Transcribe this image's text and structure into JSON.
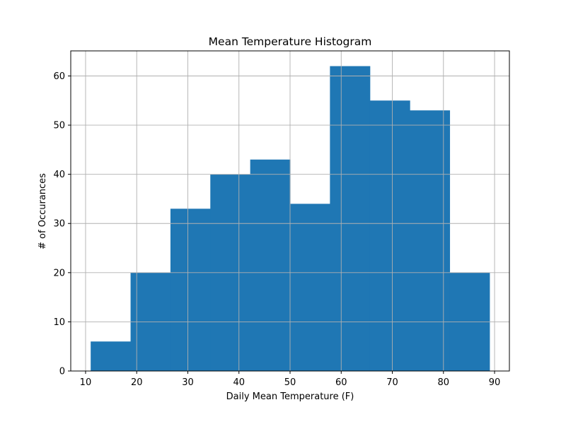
{
  "chart_data": {
    "type": "bar",
    "title": "Mean Temperature Histogram",
    "xlabel": "Daily Mean Temperature (F)",
    "ylabel": "# of Occurances",
    "bins": [
      {
        "start": 11.0,
        "end": 18.8,
        "count": 6
      },
      {
        "start": 18.8,
        "end": 26.6,
        "count": 20
      },
      {
        "start": 26.6,
        "end": 34.4,
        "count": 33
      },
      {
        "start": 34.4,
        "end": 42.2,
        "count": 40
      },
      {
        "start": 42.2,
        "end": 50.0,
        "count": 43
      },
      {
        "start": 50.0,
        "end": 57.8,
        "count": 34
      },
      {
        "start": 57.8,
        "end": 65.6,
        "count": 62
      },
      {
        "start": 65.6,
        "end": 73.4,
        "count": 55
      },
      {
        "start": 73.4,
        "end": 81.2,
        "count": 53
      },
      {
        "start": 81.2,
        "end": 89.0,
        "count": 20
      }
    ],
    "xlim": [
      7.1,
      92.9
    ],
    "ylim": [
      0,
      65.1
    ],
    "x_ticks": [
      10,
      20,
      30,
      40,
      50,
      60,
      70,
      80,
      90
    ],
    "y_ticks": [
      0,
      10,
      20,
      30,
      40,
      50,
      60
    ],
    "grid": true,
    "bar_color": "#1f77b4",
    "grid_color": "#b0b0b0"
  }
}
